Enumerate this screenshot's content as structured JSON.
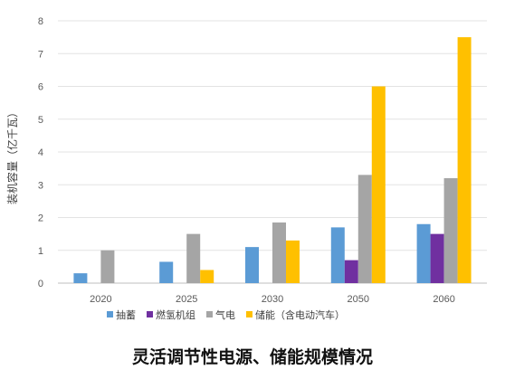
{
  "caption": "灵活调节性电源、储能规模情况",
  "chart_data": {
    "type": "bar",
    "title": "",
    "xlabel": "",
    "ylabel": "装机容量（亿千瓦）",
    "ylim": [
      0,
      8
    ],
    "yticks": [
      0,
      1,
      2,
      3,
      4,
      5,
      6,
      7,
      8
    ],
    "grid": true,
    "legend_position": "bottom",
    "categories": [
      "2020",
      "2025",
      "2030",
      "2050",
      "2060"
    ],
    "series": [
      {
        "name": "抽蓄",
        "color": "#5b9bd5",
        "values": [
          0.3,
          0.65,
          1.1,
          1.7,
          1.8
        ]
      },
      {
        "name": "燃氢机组",
        "color": "#7030a0",
        "values": [
          0,
          0,
          0,
          0.7,
          1.5
        ]
      },
      {
        "name": "气电",
        "color": "#a5a5a5",
        "values": [
          1.0,
          1.5,
          1.85,
          3.3,
          3.2
        ]
      },
      {
        "name": "储能（含电动汽车）",
        "color": "#ffc000",
        "values": [
          0,
          0.4,
          1.3,
          6.0,
          7.5
        ]
      }
    ]
  }
}
